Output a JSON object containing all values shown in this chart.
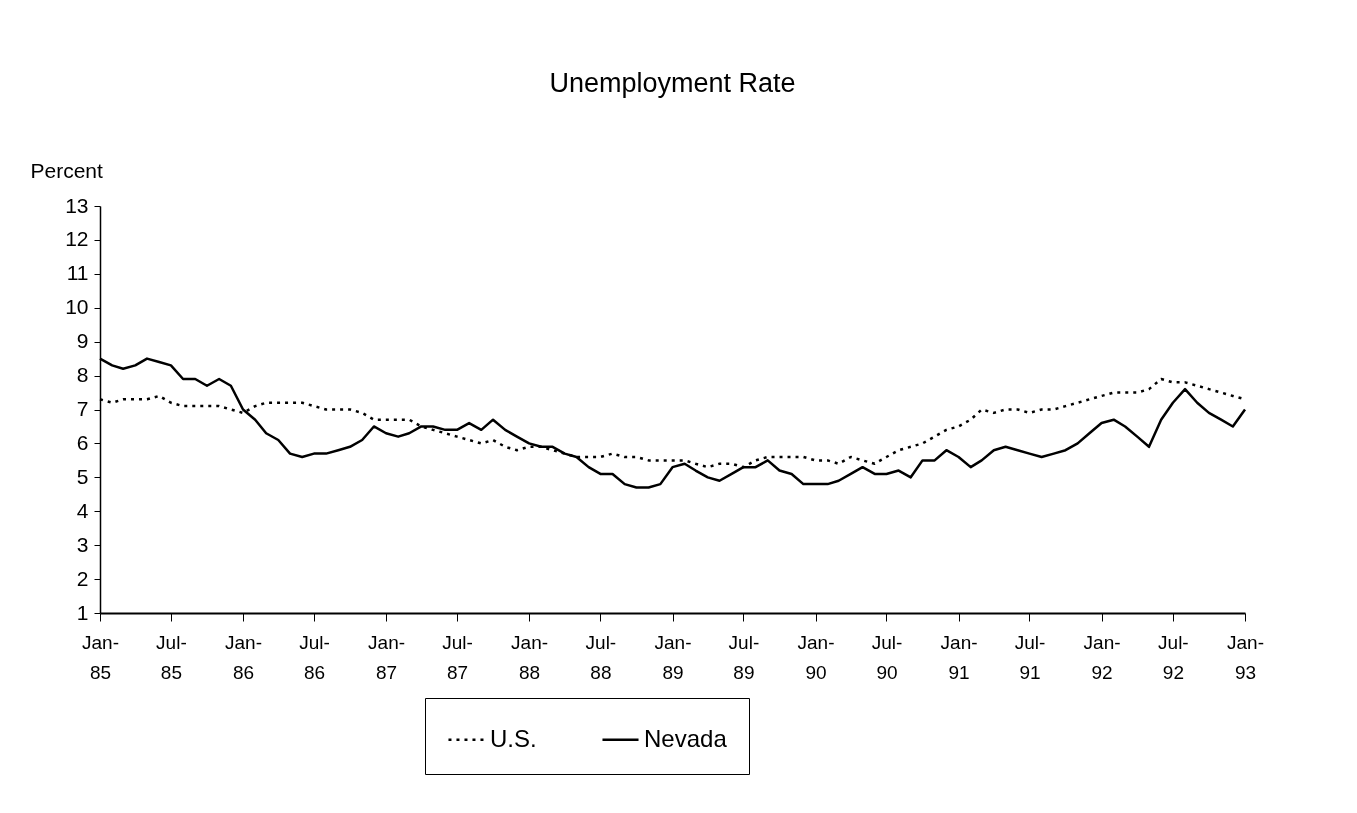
{
  "chart_data": {
    "type": "line",
    "title": "Unemployment Rate",
    "ylabel": "Percent",
    "x": [
      "1985-01",
      "1985-02",
      "1985-03",
      "1985-04",
      "1985-05",
      "1985-06",
      "1985-07",
      "1985-08",
      "1985-09",
      "1985-10",
      "1985-11",
      "1985-12",
      "1986-01",
      "1986-02",
      "1986-03",
      "1986-04",
      "1986-05",
      "1986-06",
      "1986-07",
      "1986-08",
      "1986-09",
      "1986-10",
      "1986-11",
      "1986-12",
      "1987-01",
      "1987-02",
      "1987-03",
      "1987-04",
      "1987-05",
      "1987-06",
      "1987-07",
      "1987-08",
      "1987-09",
      "1987-10",
      "1987-11",
      "1987-12",
      "1988-01",
      "1988-02",
      "1988-03",
      "1988-04",
      "1988-05",
      "1988-06",
      "1988-07",
      "1988-08",
      "1988-09",
      "1988-10",
      "1988-11",
      "1988-12",
      "1989-01",
      "1989-02",
      "1989-03",
      "1989-04",
      "1989-05",
      "1989-06",
      "1989-07",
      "1989-08",
      "1989-09",
      "1989-10",
      "1989-11",
      "1989-12",
      "1990-01",
      "1990-02",
      "1990-03",
      "1990-04",
      "1990-05",
      "1990-06",
      "1990-07",
      "1990-08",
      "1990-09",
      "1990-10",
      "1990-11",
      "1990-12",
      "1991-01",
      "1991-02",
      "1991-03",
      "1991-04",
      "1991-05",
      "1991-06",
      "1991-07",
      "1991-08",
      "1991-09",
      "1991-10",
      "1991-11",
      "1991-12",
      "1992-01",
      "1992-02",
      "1992-03",
      "1992-04",
      "1992-05",
      "1992-06",
      "1992-07",
      "1992-08",
      "1992-09",
      "1992-10",
      "1992-11",
      "1992-12",
      "1993-01"
    ],
    "series": [
      {
        "name": "U.S.",
        "color": "#000000",
        "line_style": "dotted",
        "values": [
          7.3,
          7.2,
          7.3,
          7.3,
          7.3,
          7.4,
          7.2,
          7.1,
          7.1,
          7.1,
          7.1,
          7.0,
          6.9,
          7.1,
          7.2,
          7.2,
          7.2,
          7.2,
          7.1,
          7.0,
          7.0,
          7.0,
          6.9,
          6.7,
          6.7,
          6.7,
          6.7,
          6.5,
          6.4,
          6.3,
          6.2,
          6.1,
          6.0,
          6.1,
          5.9,
          5.8,
          5.9,
          5.9,
          5.8,
          5.7,
          5.6,
          5.6,
          5.6,
          5.7,
          5.6,
          5.6,
          5.5,
          5.5,
          5.5,
          5.5,
          5.4,
          5.3,
          5.4,
          5.4,
          5.3,
          5.5,
          5.6,
          5.6,
          5.6,
          5.6,
          5.5,
          5.5,
          5.4,
          5.6,
          5.5,
          5.4,
          5.6,
          5.8,
          5.9,
          6.0,
          6.2,
          6.4,
          6.5,
          6.7,
          7.0,
          6.9,
          7.0,
          7.0,
          6.9,
          7.0,
          7.0,
          7.1,
          7.2,
          7.3,
          7.4,
          7.5,
          7.5,
          7.5,
          7.6,
          7.9,
          7.8,
          7.8,
          7.7,
          7.6,
          7.5,
          7.4,
          7.3
        ]
      },
      {
        "name": "Nevada",
        "color": "#000000",
        "line_style": "solid",
        "values": [
          8.5,
          8.3,
          8.2,
          8.3,
          8.5,
          8.4,
          8.3,
          7.9,
          7.9,
          7.7,
          7.9,
          7.7,
          7.0,
          6.7,
          6.3,
          6.1,
          5.7,
          5.6,
          5.7,
          5.7,
          5.8,
          5.9,
          6.1,
          6.5,
          6.3,
          6.2,
          6.3,
          6.5,
          6.5,
          6.4,
          6.4,
          6.6,
          6.4,
          6.7,
          6.4,
          6.2,
          6.0,
          5.9,
          5.9,
          5.7,
          5.6,
          5.3,
          5.1,
          5.1,
          4.8,
          4.7,
          4.7,
          4.8,
          5.3,
          5.4,
          5.2,
          5.0,
          4.9,
          5.1,
          5.3,
          5.3,
          5.5,
          5.2,
          5.1,
          4.8,
          4.8,
          4.8,
          4.9,
          5.1,
          5.3,
          5.1,
          5.1,
          5.2,
          5.0,
          5.5,
          5.5,
          5.8,
          5.6,
          5.3,
          5.5,
          5.8,
          5.9,
          5.8,
          5.7,
          5.6,
          5.7,
          5.8,
          6.0,
          6.3,
          6.6,
          6.7,
          6.5,
          6.2,
          5.9,
          6.7,
          7.2,
          7.6,
          7.2,
          6.9,
          6.7,
          6.5,
          7.0
        ]
      }
    ],
    "ylim": [
      1,
      13
    ],
    "yticks": [
      1,
      2,
      3,
      4,
      5,
      6,
      7,
      8,
      9,
      10,
      11,
      12,
      13
    ],
    "xlim": [
      "1985-01",
      "1993-01"
    ],
    "xticks": [
      {
        "value": "1985-01",
        "label": "Jan-85"
      },
      {
        "value": "1985-07",
        "label": "Jul-85"
      },
      {
        "value": "1986-01",
        "label": "Jan-86"
      },
      {
        "value": "1986-07",
        "label": "Jul-86"
      },
      {
        "value": "1987-01",
        "label": "Jan-87"
      },
      {
        "value": "1987-07",
        "label": "Jul-87"
      },
      {
        "value": "1988-01",
        "label": "Jan-88"
      },
      {
        "value": "1988-07",
        "label": "Jul-88"
      },
      {
        "value": "1989-01",
        "label": "Jan-89"
      },
      {
        "value": "1989-07",
        "label": "Jul-89"
      },
      {
        "value": "1990-01",
        "label": "Jan-90"
      },
      {
        "value": "1990-07",
        "label": "Jul-90"
      },
      {
        "value": "1991-01",
        "label": "Jan-91"
      },
      {
        "value": "1991-07",
        "label": "Jul-91"
      },
      {
        "value": "1992-01",
        "label": "Jan-92"
      },
      {
        "value": "1992-07",
        "label": "Jul-92"
      },
      {
        "value": "1993-01",
        "label": "Jan-93"
      }
    ],
    "grid": false,
    "legend": "bottom",
    "marker": "none"
  }
}
